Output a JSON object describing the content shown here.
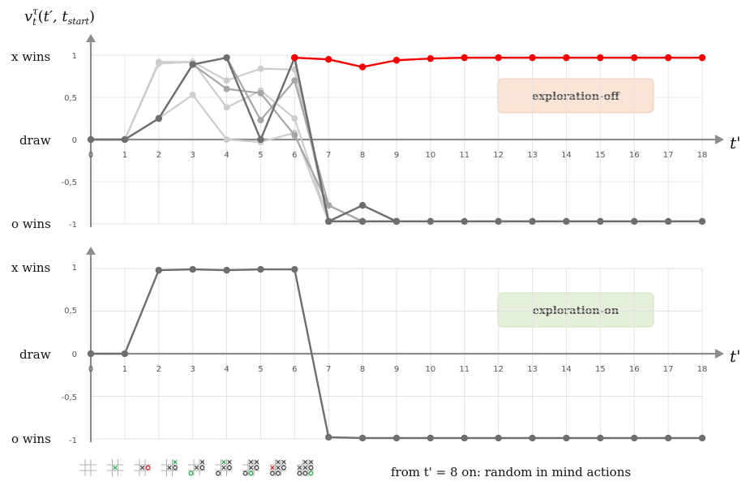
{
  "colors": {
    "axis": "#8c8c8c",
    "grid": "#e3e3e3",
    "highlight": "#f00000",
    "dark": "#6e6e6e",
    "light": "#cdcdcd",
    "badge_off": "#fbe3d6",
    "badge_on": "#e5f0db"
  },
  "y_axis_title": "v_t^τ(t', t_start)",
  "x_axis_title": "t'",
  "outcome_labels": {
    "x_wins": "x wins",
    "draw": "draw",
    "o_wins": "o wins"
  },
  "y_tick_labels": [
    "1",
    "0,5",
    "0",
    "-0,5",
    "-1"
  ],
  "caption": "from t' = 8 on: random in mind actions",
  "chart_data": [
    {
      "type": "line",
      "badge": "exploration-off",
      "x": [
        0,
        1,
        2,
        3,
        4,
        5,
        6,
        7,
        8,
        9,
        10,
        11,
        12,
        13,
        14,
        15,
        16,
        17,
        18
      ],
      "xlim": [
        0,
        18
      ],
      "ylim": [
        -1,
        1
      ],
      "series": [
        {
          "style": "light",
          "x": [
            0,
            1,
            2,
            3,
            4,
            5,
            6,
            7,
            8
          ],
          "values": [
            0,
            0,
            0.92,
            0.92,
            0.7,
            0.84,
            0.83,
            -0.97,
            -0.97
          ]
        },
        {
          "style": "light",
          "x": [
            0,
            1,
            2,
            3,
            4,
            5,
            6,
            7,
            8
          ],
          "values": [
            0,
            0,
            0.9,
            0.92,
            0.38,
            0.58,
            0.25,
            -0.97,
            -0.97
          ]
        },
        {
          "style": "light",
          "x": [
            0,
            1,
            2,
            3,
            4,
            5,
            6,
            7,
            8
          ],
          "values": [
            0,
            0,
            0.25,
            0.53,
            0.0,
            -0.03,
            0.08,
            -0.97,
            -0.97
          ]
        },
        {
          "style": "mid",
          "x": [
            0,
            1,
            2,
            3,
            4,
            5,
            6,
            7,
            8
          ],
          "values": [
            0,
            0,
            0.25,
            0.89,
            0.6,
            0.55,
            0.05,
            -0.78,
            -0.97
          ]
        },
        {
          "style": "mid",
          "x": [
            0,
            1,
            2,
            3,
            4,
            5,
            6,
            7,
            8
          ],
          "values": [
            0,
            0,
            0.25,
            0.89,
            0.97,
            0.23,
            0.7,
            -0.78,
            -0.97
          ]
        },
        {
          "style": "dark",
          "x": [
            0,
            1,
            2,
            3,
            4,
            5,
            6,
            7,
            8,
            9
          ],
          "values": [
            0,
            0,
            0.25,
            0.89,
            0.97,
            0.0,
            0.97,
            -0.97,
            -0.78,
            -0.97
          ]
        },
        {
          "style": "dark",
          "x": [
            6,
            7,
            8,
            9,
            10,
            11,
            12,
            13,
            14,
            15,
            16,
            17,
            18
          ],
          "values": [
            0.97,
            -0.97,
            -0.97,
            -0.97,
            -0.97,
            -0.97,
            -0.97,
            -0.97,
            -0.97,
            -0.97,
            -0.97,
            -0.97,
            -0.97
          ]
        },
        {
          "style": "highlight",
          "x": [
            6,
            7,
            8,
            9,
            10,
            11,
            12,
            13,
            14,
            15,
            16,
            17,
            18
          ],
          "values": [
            0.97,
            0.95,
            0.86,
            0.94,
            0.96,
            0.97,
            0.97,
            0.97,
            0.97,
            0.97,
            0.97,
            0.97,
            0.97
          ]
        }
      ]
    },
    {
      "type": "line",
      "badge": "exploration-on",
      "x": [
        0,
        1,
        2,
        3,
        4,
        5,
        6,
        7,
        8,
        9,
        10,
        11,
        12,
        13,
        14,
        15,
        16,
        17,
        18
      ],
      "xlim": [
        0,
        18
      ],
      "ylim": [
        -1,
        1
      ],
      "series": [
        {
          "style": "dark",
          "x": [
            0,
            1,
            2,
            3,
            4,
            5,
            6,
            7,
            8,
            9,
            10,
            11,
            12,
            13,
            14,
            15,
            16,
            17,
            18
          ],
          "values": [
            0,
            0,
            0.98,
            0.99,
            0.98,
            0.99,
            0.99,
            -0.98,
            -0.99,
            -0.99,
            -0.99,
            -0.99,
            -0.99,
            -0.99,
            -0.99,
            -0.99,
            -0.99,
            -0.99,
            -0.99
          ]
        }
      ]
    }
  ],
  "board_sequence": [
    [],
    [
      {
        "c": 4,
        "m": "x",
        "hl": true
      }
    ],
    [
      {
        "c": 4,
        "m": "x"
      },
      {
        "c": 5,
        "m": "o",
        "hl": true
      }
    ],
    [
      {
        "c": 2,
        "m": "x",
        "hl": true
      },
      {
        "c": 4,
        "m": "x"
      },
      {
        "c": 5,
        "m": "o"
      }
    ],
    [
      {
        "c": 2,
        "m": "x"
      },
      {
        "c": 4,
        "m": "x"
      },
      {
        "c": 5,
        "m": "o"
      },
      {
        "c": 6,
        "m": "o",
        "hl": true
      }
    ],
    [
      {
        "c": 1,
        "m": "x",
        "hl": true
      },
      {
        "c": 2,
        "m": "x"
      },
      {
        "c": 4,
        "m": "x"
      },
      {
        "c": 5,
        "m": "o"
      },
      {
        "c": 6,
        "m": "o"
      }
    ],
    [
      {
        "c": 1,
        "m": "x"
      },
      {
        "c": 2,
        "m": "x"
      },
      {
        "c": 4,
        "m": "x"
      },
      {
        "c": 5,
        "m": "o"
      },
      {
        "c": 6,
        "m": "o"
      },
      {
        "c": 7,
        "m": "o",
        "hl": true
      }
    ],
    [
      {
        "c": 1,
        "m": "x"
      },
      {
        "c": 2,
        "m": "x"
      },
      {
        "c": 3,
        "m": "x",
        "hl": true
      },
      {
        "c": 4,
        "m": "x"
      },
      {
        "c": 5,
        "m": "o"
      },
      {
        "c": 6,
        "m": "o"
      },
      {
        "c": 7,
        "m": "o"
      }
    ],
    [
      {
        "c": 1,
        "m": "x"
      },
      {
        "c": 2,
        "m": "x"
      },
      {
        "c": 3,
        "m": "x"
      },
      {
        "c": 4,
        "m": "x"
      },
      {
        "c": 5,
        "m": "o"
      },
      {
        "c": 6,
        "m": "o"
      },
      {
        "c": 7,
        "m": "o"
      },
      {
        "c": 8,
        "m": "o",
        "hl": true
      }
    ]
  ]
}
